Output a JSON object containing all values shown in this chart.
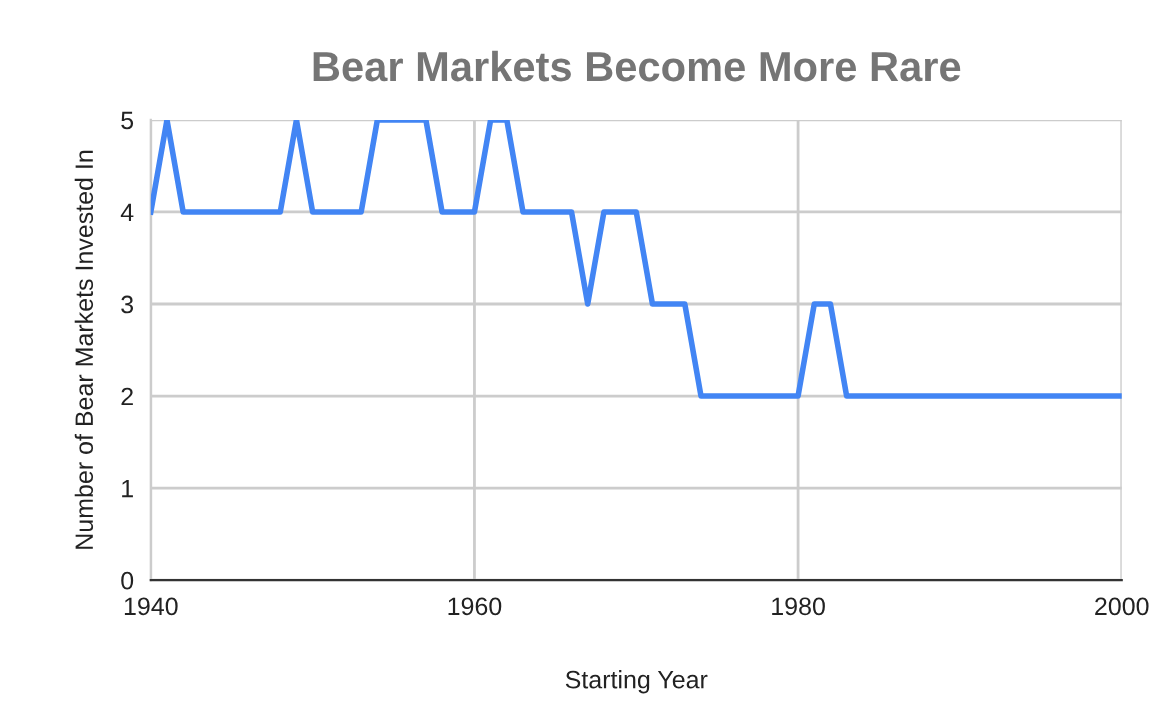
{
  "chart_data": {
    "type": "line",
    "title": "Bear Markets Become More Rare",
    "xlabel": "Starting Year",
    "ylabel": "Number of Bear Markets Invested In",
    "x": [
      1940,
      1941,
      1942,
      1943,
      1944,
      1945,
      1946,
      1947,
      1948,
      1949,
      1950,
      1951,
      1952,
      1953,
      1954,
      1955,
      1956,
      1957,
      1958,
      1959,
      1960,
      1961,
      1962,
      1963,
      1964,
      1965,
      1966,
      1967,
      1968,
      1969,
      1970,
      1971,
      1972,
      1973,
      1974,
      1975,
      1976,
      1977,
      1978,
      1979,
      1980,
      1981,
      1982,
      1983,
      1984,
      1985,
      1986,
      1987,
      1988,
      1989,
      1990,
      1991,
      1992,
      1993,
      1994,
      1995,
      1996,
      1997,
      1998,
      1999,
      2000
    ],
    "series": [
      {
        "color": "#4285f4",
        "values": [
          4,
          5,
          4,
          4,
          4,
          4,
          4,
          4,
          4,
          5,
          4,
          4,
          4,
          4,
          5,
          5,
          5,
          5,
          4,
          4,
          4,
          5,
          5,
          4,
          4,
          4,
          4,
          3,
          4,
          4,
          4,
          3,
          3,
          3,
          2,
          2,
          2,
          2,
          2,
          2,
          2,
          3,
          3,
          2,
          2,
          2,
          2,
          2,
          2,
          2,
          2,
          2,
          2,
          2,
          2,
          2,
          2,
          2,
          2,
          2,
          2
        ]
      }
    ],
    "xlim": [
      1940,
      2000
    ],
    "xticks": [
      1940,
      1960,
      1980,
      2000
    ],
    "ylim": [
      0,
      5
    ],
    "yticks": [
      0,
      1,
      2,
      3,
      4,
      5
    ],
    "grid": true,
    "marker": "none",
    "line_style": "solid"
  }
}
